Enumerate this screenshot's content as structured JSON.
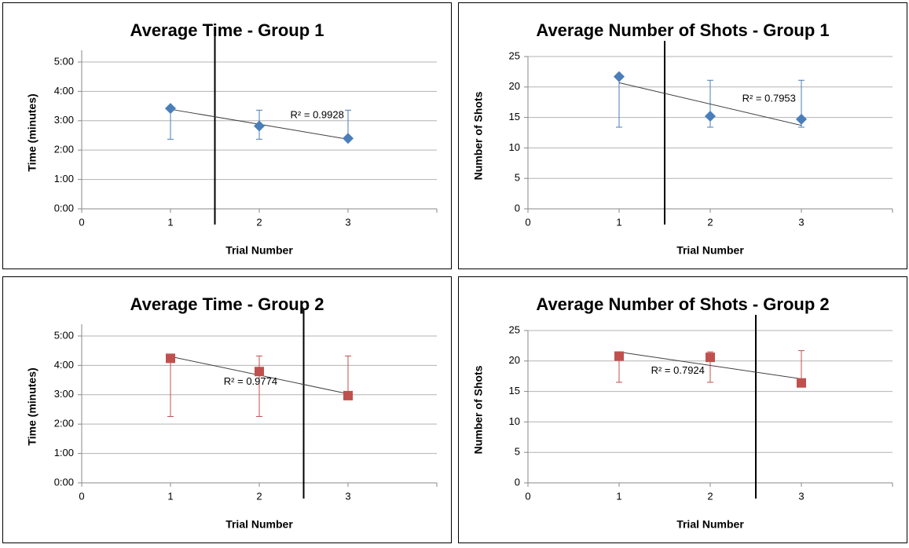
{
  "chart_data": [
    {
      "type": "scatter",
      "title": "Average Time - Group 1",
      "x_label": "Trial Number",
      "y_label": "Time (minutes)",
      "x": [
        1,
        2,
        3
      ],
      "values": [
        3.42,
        2.82,
        2.4
      ],
      "error_minus": [
        1.05,
        0.45,
        0
      ],
      "error_plus": [
        0,
        0.54,
        0.96
      ],
      "color": "#4a7ebb",
      "marker": "diamond",
      "trendline": "linear",
      "annotation": "R² = 0.9928",
      "vline": 1.5,
      "xlim": [
        0,
        4
      ],
      "xticks": [
        0,
        1,
        2,
        3
      ],
      "ylim": [
        0,
        5.4
      ],
      "yticks": [
        {
          "value": 0,
          "label": "0:00"
        },
        {
          "value": 1,
          "label": "1:00"
        },
        {
          "value": 2,
          "label": "2:00"
        },
        {
          "value": 3,
          "label": "3:00"
        },
        {
          "value": 4,
          "label": "4:00"
        },
        {
          "value": 5,
          "label": "5:00"
        }
      ],
      "grid": true
    },
    {
      "type": "scatter",
      "title": "Average Number of Shots - Group 1",
      "x_label": "Trial Number",
      "y_label": "Number of Shots",
      "x": [
        1,
        2,
        3
      ],
      "values": [
        21.7,
        15.2,
        14.7
      ],
      "error_minus": [
        8.3,
        1.8,
        1.3
      ],
      "error_plus": [
        0,
        5.9,
        6.4
      ],
      "color": "#4a7ebb",
      "marker": "diamond",
      "trendline": "linear",
      "annotation": "R² = 0.7953",
      "vline": 1.5,
      "xlim": [
        0,
        4
      ],
      "xticks": [
        0,
        1,
        2,
        3
      ],
      "ylim": [
        0,
        25
      ],
      "yticks": [
        0,
        5,
        10,
        15,
        20,
        25
      ],
      "grid": true
    },
    {
      "type": "scatter",
      "title": "Average Time - Group 2",
      "x_label": "Trial Number",
      "y_label": "Time (minutes)",
      "x": [
        1,
        2,
        3
      ],
      "values": [
        4.24,
        3.79,
        2.97
      ],
      "error_minus": [
        1.98,
        1.53,
        0
      ],
      "error_plus": [
        0,
        0.53,
        1.35
      ],
      "color": "#c0504d",
      "marker": "square",
      "trendline": "linear",
      "annotation": "R² = 0.9774",
      "vline": 2.5,
      "xlim": [
        0,
        4
      ],
      "xticks": [
        0,
        1,
        2,
        3
      ],
      "ylim": [
        0,
        5.4
      ],
      "yticks": [
        {
          "value": 0,
          "label": "0:00"
        },
        {
          "value": 1,
          "label": "1:00"
        },
        {
          "value": 2,
          "label": "2:00"
        },
        {
          "value": 3,
          "label": "3:00"
        },
        {
          "value": 4,
          "label": "4:00"
        },
        {
          "value": 5,
          "label": "5:00"
        }
      ],
      "grid": true
    },
    {
      "type": "scatter",
      "title": "Average Number of Shots - Group 2",
      "x_label": "Trial Number",
      "y_label": "Number of Shots",
      "x": [
        1,
        2,
        3
      ],
      "values": [
        20.8,
        20.6,
        16.4
      ],
      "error_minus": [
        4.3,
        4.1,
        0
      ],
      "error_plus": [
        0.7,
        0.9,
        5.3
      ],
      "color": "#c0504d",
      "marker": "square",
      "trendline": "linear",
      "annotation": "R² = 0.7924",
      "vline": 2.5,
      "xlim": [
        0,
        4
      ],
      "xticks": [
        0,
        1,
        2,
        3
      ],
      "ylim": [
        0,
        25
      ],
      "yticks": [
        0,
        5,
        10,
        15,
        20,
        25
      ],
      "grid": true
    }
  ]
}
